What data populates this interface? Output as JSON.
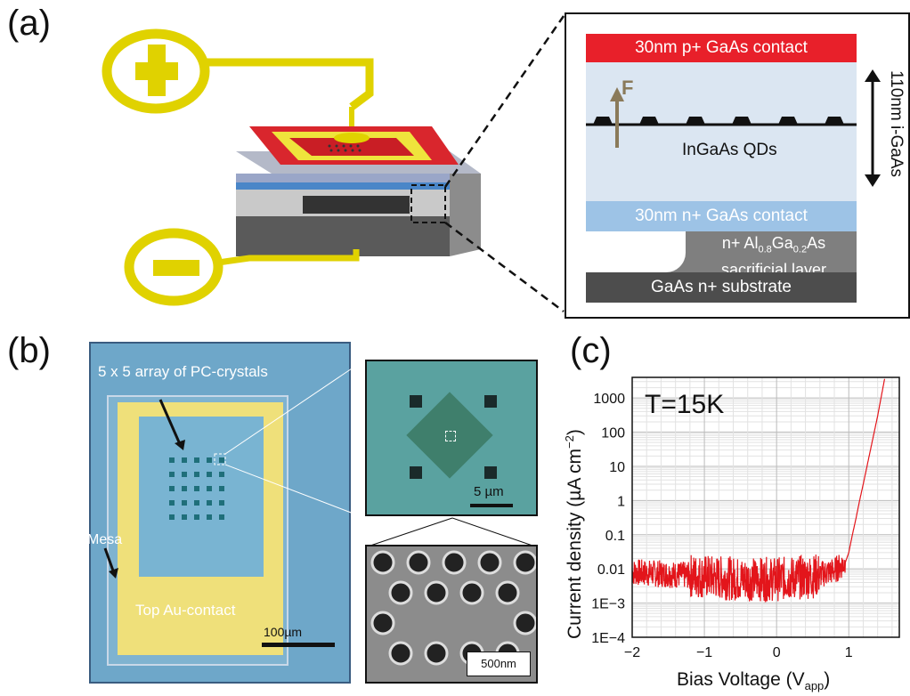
{
  "panels": {
    "a": "(a)",
    "b": "(b)",
    "c": "(c)"
  },
  "layers": {
    "p_contact": "30nm p+ GaAs contact",
    "field": "F",
    "qds": "InGaAs QDs",
    "n_contact": "30nm n+ GaAs contact",
    "sacrificial_line1": "n+ Al",
    "sacrificial_sub1": "0.8",
    "sacrificial_mid": "Ga",
    "sacrificial_sub2": "0.2",
    "sacrificial_end": "As",
    "sacrificial_line2": "sacrificial layer",
    "substrate": "GaAs n+ substrate",
    "thickness": "110nm i-GaAs"
  },
  "micrograph": {
    "array_label": "5 x 5 array of PC-crystals",
    "mesa": "Mesa",
    "top_contact": "Top Au-contact",
    "scale_main": "100µm",
    "scale_zoom": "5 µm",
    "scale_sem": "500nm"
  },
  "colors": {
    "p_contact": "#e8202a",
    "i_region": "#dbe6f2",
    "n_contact": "#9dc3e6",
    "sacrificial": "#7f7f7f",
    "substrate": "#4d4d4d",
    "gold": "#f2e000",
    "curve": "#e3151b"
  },
  "chart_data": {
    "type": "line",
    "annotation": "T=15K",
    "xlabel": "Bias Voltage (V",
    "xlabel_sub": "app",
    "xlabel_end": ")",
    "ylabel": "Current density (µA cm",
    "ylabel_sup": "−2",
    "ylabel_end": ")",
    "xlim": [
      -2,
      1.7
    ],
    "ylim": [
      0.0001,
      4000
    ],
    "yscale": "log",
    "grid": true,
    "xticks": [
      -2,
      -1,
      0,
      1
    ],
    "xtick_labels": [
      "−2",
      "−1",
      "0",
      "1"
    ],
    "yticks": [
      0.0001,
      0.001,
      0.01,
      0.1,
      1,
      10,
      100,
      1000
    ],
    "ytick_labels": [
      "1E−4",
      "1E−3",
      "0.01",
      "0.1",
      "1",
      "10",
      "100",
      "1000"
    ],
    "series": [
      {
        "x": [
          -2,
          -1.5,
          -1,
          -0.5,
          0,
          0.5,
          0.8,
          0.95,
          1.0,
          1.05,
          1.1,
          1.15,
          1.2,
          1.3,
          1.4,
          1.5
        ],
        "y": [
          0.008,
          0.007,
          0.006,
          0.005,
          0.005,
          0.006,
          0.009,
          0.015,
          0.03,
          0.1,
          0.3,
          1,
          3,
          30,
          300,
          4000
        ]
      }
    ]
  }
}
